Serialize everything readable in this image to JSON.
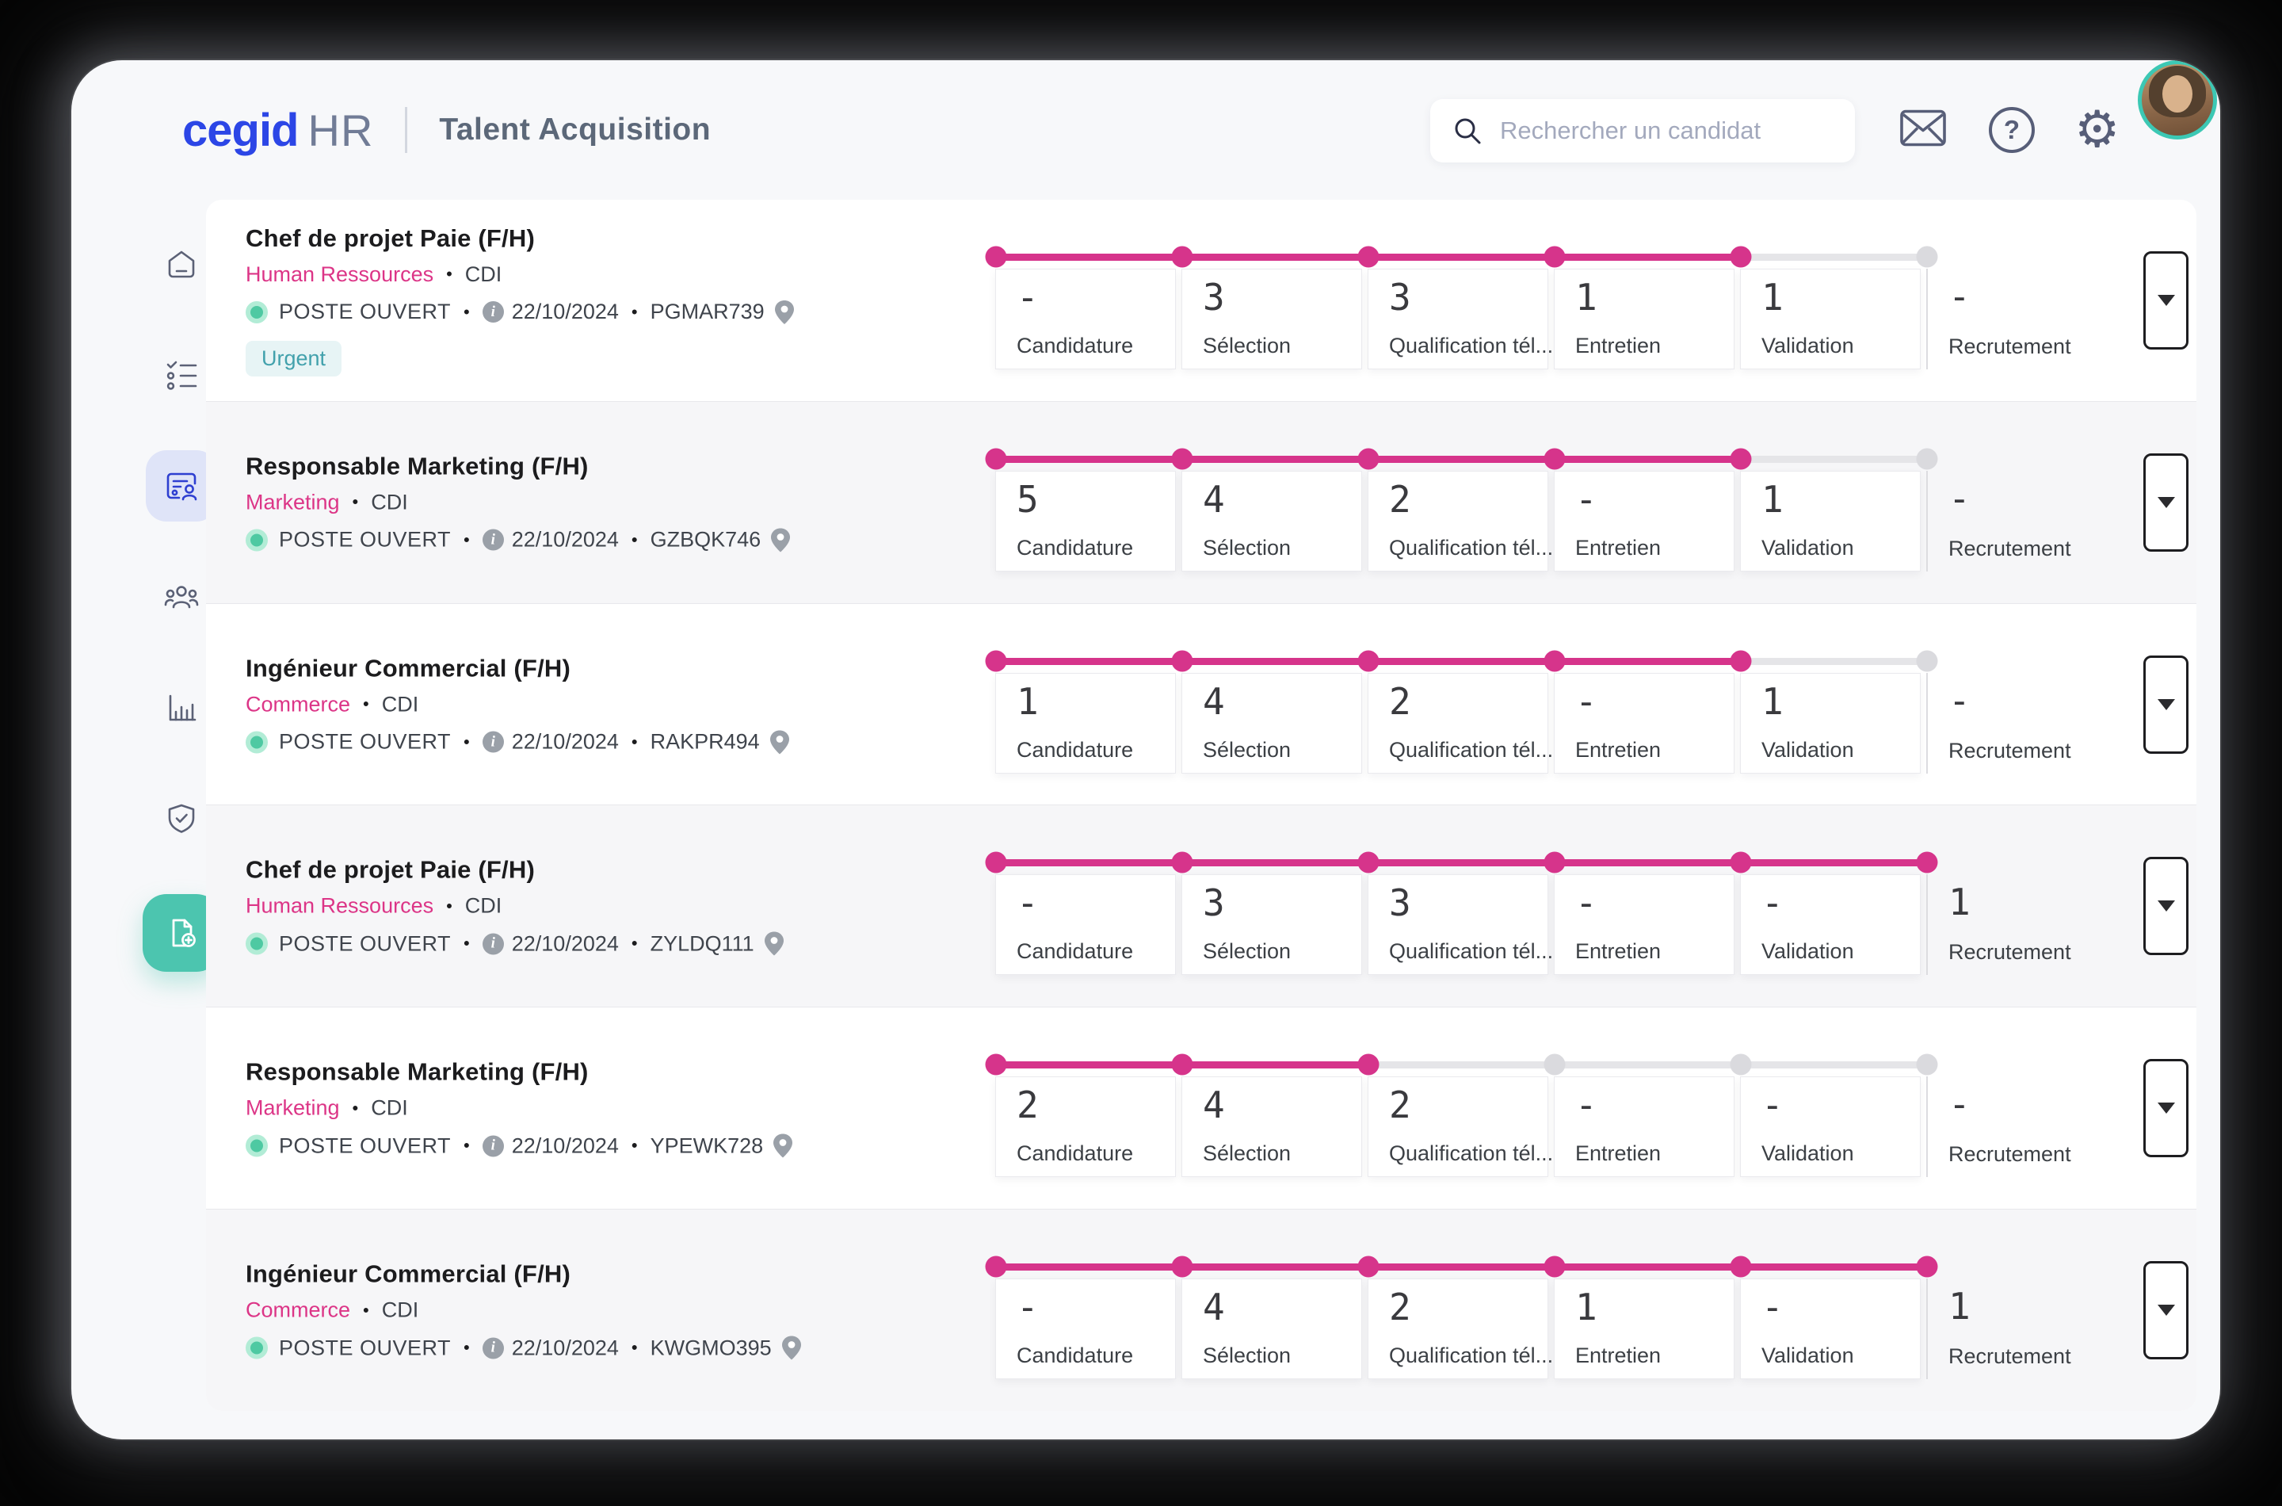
{
  "header": {
    "logo_brand": "cegid",
    "logo_suffix": "HR",
    "app_title": "Talent Acquisition",
    "search_placeholder": "Rechercher un candidat",
    "icons": [
      "search-icon",
      "mail-icon",
      "help-icon",
      "gear-icon",
      "user-avatar"
    ]
  },
  "sidebar": {
    "icons": [
      "home-icon",
      "checklist-icon",
      "candidate-card-icon",
      "team-icon",
      "bar-chart-icon",
      "shield-check-icon",
      "add-document-icon"
    ],
    "active_item": "candidate-card-icon"
  },
  "pipeline_stages": [
    "Candidature",
    "Sélection",
    "Qualification tél...",
    "Entretien",
    "Validation",
    "Recrutement"
  ],
  "jobs": [
    {
      "title": "Chef de projet Paie (F/H)",
      "department": "Human Ressources",
      "contract": "CDI",
      "status": "POSTE OUVERT",
      "date": "22/10/2024",
      "code": "PGMAR739",
      "badge": "Urgent",
      "stage_values": [
        "-",
        "3",
        "3",
        "1",
        "1",
        "-"
      ],
      "progress_dots": 5
    },
    {
      "title": "Responsable Marketing (F/H)",
      "department": "Marketing",
      "contract": "CDI",
      "status": "POSTE OUVERT",
      "date": "22/10/2024",
      "code": "GZBQK746",
      "badge": null,
      "stage_values": [
        "5",
        "4",
        "2",
        "-",
        "1",
        "-"
      ],
      "progress_dots": 5
    },
    {
      "title": "Ingénieur Commercial (F/H)",
      "department": "Commerce",
      "contract": "CDI",
      "status": "POSTE OUVERT",
      "date": "22/10/2024",
      "code": "RAKPR494",
      "badge": null,
      "stage_values": [
        "1",
        "4",
        "2",
        "-",
        "1",
        "-"
      ],
      "progress_dots": 5
    },
    {
      "title": "Chef de projet Paie (F/H)",
      "department": "Human Ressources",
      "contract": "CDI",
      "status": "POSTE OUVERT",
      "date": "22/10/2024",
      "code": "ZYLDQ111",
      "badge": null,
      "stage_values": [
        "-",
        "3",
        "3",
        "-",
        "-",
        "1"
      ],
      "progress_dots": 6
    },
    {
      "title": "Responsable Marketing (F/H)",
      "department": "Marketing",
      "contract": "CDI",
      "status": "POSTE OUVERT",
      "date": "22/10/2024",
      "code": "YPEWK728",
      "badge": null,
      "stage_values": [
        "2",
        "4",
        "2",
        "-",
        "-",
        "-"
      ],
      "progress_dots": 3
    },
    {
      "title": "Ingénieur Commercial (F/H)",
      "department": "Commerce",
      "contract": "CDI",
      "status": "POSTE OUVERT",
      "date": "22/10/2024",
      "code": "KWGMO395",
      "badge": null,
      "stage_values": [
        "-",
        "4",
        "2",
        "1",
        "-",
        "1"
      ],
      "progress_dots": 6
    }
  ],
  "colors": {
    "accent_pink": "#d6348b",
    "brand_blue": "#2c46e6",
    "teal_action": "#4cc5af",
    "status_green": "#4ec9a2",
    "urgent_badge_text": "#42a1ac",
    "urgent_badge_bg": "#e7f4f5",
    "inactive_track": "#e5e5e8"
  }
}
